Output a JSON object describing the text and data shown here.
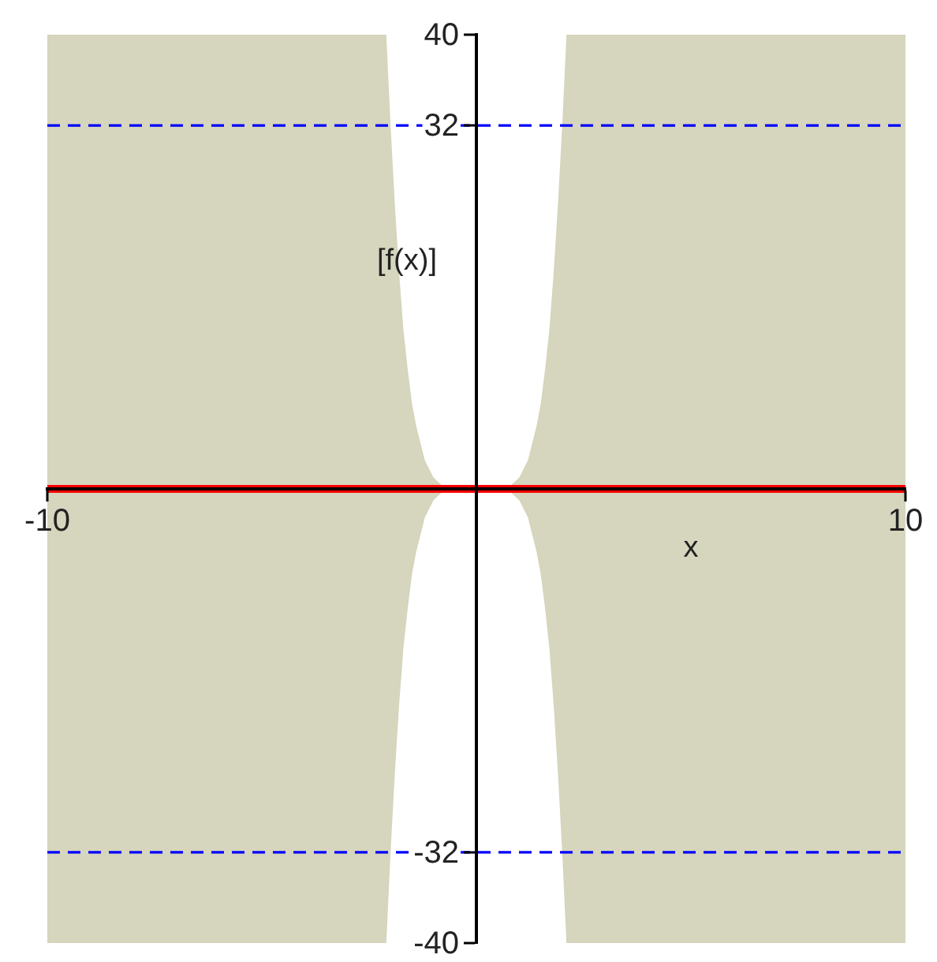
{
  "chart_data": {
    "type": "line",
    "xlabel": "x",
    "ylabel": "[f(x)]",
    "xlim": [
      -10,
      10
    ],
    "ylim": [
      -40,
      40
    ],
    "xticks": [
      -10,
      10
    ],
    "yticks": [
      -40,
      -32,
      32,
      40
    ],
    "grid": false,
    "legend": false,
    "series": [
      {
        "type": "area",
        "color": "#d6d5bd",
        "x": [
          -10,
          -2.1,
          -2,
          -1.9,
          -1.8,
          -1.7,
          -1.6,
          -1.5,
          -1.4,
          -1.2,
          -1,
          -0.8,
          -0.5,
          0,
          0.5,
          0.8,
          1,
          1.2,
          1.4,
          1.5,
          1.6,
          1.7,
          1.8,
          1.9,
          2,
          2.1,
          10
        ],
        "values": [
          40,
          40,
          32,
          25,
          19,
          14,
          10.5,
          7.5,
          5.5,
          2.5,
          1,
          0.3,
          0,
          0,
          0,
          0.3,
          1,
          2.5,
          5.5,
          7.5,
          10.5,
          14,
          19,
          25,
          32,
          40,
          40
        ]
      },
      {
        "type": "area",
        "color": "#d6d5bd",
        "x": [
          -10,
          -2.1,
          -2,
          -1.9,
          -1.8,
          -1.7,
          -1.6,
          -1.5,
          -1.4,
          -1.2,
          -1,
          -0.8,
          -0.5,
          0,
          0.5,
          0.8,
          1,
          1.2,
          1.4,
          1.5,
          1.6,
          1.7,
          1.8,
          1.9,
          2,
          2.1,
          10
        ],
        "values": [
          -40,
          -40,
          -32,
          -25,
          -19,
          -14,
          -10.5,
          -7.5,
          -5.5,
          -2.5,
          -1,
          -0.3,
          0,
          0,
          0,
          -0.3,
          -1,
          -2.5,
          -5.5,
          -7.5,
          -10.5,
          -14,
          -19,
          -25,
          -32,
          -40,
          -40
        ]
      },
      {
        "type": "line",
        "color": "#ff0000",
        "x": [
          -10,
          10
        ],
        "values": [
          0,
          0
        ]
      }
    ],
    "ref_lines": [
      {
        "axis": "y",
        "value": 32,
        "color": "#0000ff",
        "line_style": "dashed"
      },
      {
        "axis": "y",
        "value": -32,
        "color": "#0000ff",
        "line_style": "dashed"
      }
    ]
  }
}
